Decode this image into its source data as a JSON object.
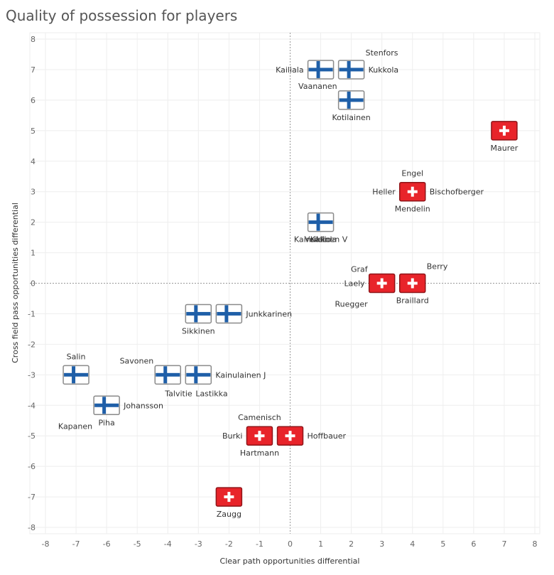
{
  "colors": {
    "finland_white": "#ffffff",
    "finland_blue": "#1f5fa8",
    "finland_border": "#8a8a8a",
    "swiss_red": "#e8242a",
    "swiss_border": "#8f1418",
    "swiss_cross": "#ffffff",
    "grid": "#eeeeee",
    "zero_line": "#999999",
    "tick_text": "#666666"
  },
  "chart_data": {
    "type": "scatter",
    "title": "Quality of possession for players",
    "xlabel": "Clear path opportunities differential",
    "ylabel": "Cross field pass opportunities differential",
    "xlim": [
      -8,
      8
    ],
    "ylim": [
      -8,
      8
    ],
    "xticks": [
      -8,
      -7,
      -6,
      -5,
      -4,
      -3,
      -2,
      -1,
      0,
      1,
      2,
      3,
      4,
      5,
      6,
      7,
      8
    ],
    "yticks": [
      8,
      7,
      6,
      5,
      4,
      3,
      2,
      1,
      0,
      -1,
      -2,
      -3,
      -4,
      -5,
      -6,
      -7,
      -8
    ],
    "grid": true,
    "markers": [
      {
        "team": "Finland",
        "x": 1,
        "y": 7
      },
      {
        "team": "Finland",
        "x": 2,
        "y": 7
      },
      {
        "team": "Finland",
        "x": 2,
        "y": 6
      },
      {
        "team": "Finland",
        "x": 1,
        "y": 2
      },
      {
        "team": "Finland",
        "x": -3,
        "y": -1
      },
      {
        "team": "Finland",
        "x": -2,
        "y": -1
      },
      {
        "team": "Finland",
        "x": -7,
        "y": -3
      },
      {
        "team": "Finland",
        "x": -4,
        "y": -3
      },
      {
        "team": "Finland",
        "x": -3,
        "y": -3
      },
      {
        "team": "Finland",
        "x": -6,
        "y": -4
      },
      {
        "team": "Switzerland",
        "x": 7,
        "y": 5
      },
      {
        "team": "Switzerland",
        "x": 4,
        "y": 3
      },
      {
        "team": "Switzerland",
        "x": 3,
        "y": 0
      },
      {
        "team": "Switzerland",
        "x": 4,
        "y": 0
      },
      {
        "team": "Switzerland",
        "x": -1,
        "y": -5
      },
      {
        "team": "Switzerland",
        "x": 0,
        "y": -5
      },
      {
        "team": "Switzerland",
        "x": -2,
        "y": -7
      }
    ],
    "labels": [
      {
        "text": "Stenfors",
        "x": 2,
        "y": 7,
        "pos": "above-right"
      },
      {
        "text": "Kailiala",
        "x": 1,
        "y": 7,
        "pos": "left"
      },
      {
        "text": "Kukkola",
        "x": 2,
        "y": 7,
        "pos": "right"
      },
      {
        "text": "Vaananen",
        "x": 2,
        "y": 6,
        "pos": "above-left"
      },
      {
        "text": "Kotilainen",
        "x": 2,
        "y": 6,
        "pos": "below"
      },
      {
        "text": "Kallio",
        "x": 1,
        "y": 2,
        "pos": "below"
      },
      {
        "text": "Veikkola",
        "x": 1,
        "y": 2,
        "pos": "below"
      },
      {
        "text": "Kainulainen V",
        "x": 1,
        "y": 2,
        "pos": "below"
      },
      {
        "text": "Junkkarinen",
        "x": -2,
        "y": -1,
        "pos": "right"
      },
      {
        "text": "Sikkinen",
        "x": -3,
        "y": -1,
        "pos": "below"
      },
      {
        "text": "Salin",
        "x": -7,
        "y": -3,
        "pos": "above"
      },
      {
        "text": "Savonen",
        "x": -4,
        "y": -3,
        "pos": "above-left"
      },
      {
        "text": "Kainulainen J",
        "x": -3,
        "y": -3,
        "pos": "right"
      },
      {
        "text": "Talvitie",
        "x": -4,
        "y": -3,
        "pos": "below-right"
      },
      {
        "text": "Lastikka",
        "x": -3,
        "y": -3,
        "pos": "below-right"
      },
      {
        "text": "Kapanen",
        "x": -6,
        "y": -4,
        "pos": "below-left"
      },
      {
        "text": "Johansson",
        "x": -6,
        "y": -4,
        "pos": "right"
      },
      {
        "text": "Piha",
        "x": -6,
        "y": -4,
        "pos": "below"
      },
      {
        "text": "Maurer",
        "x": 7,
        "y": 5,
        "pos": "below"
      },
      {
        "text": "Engel",
        "x": 4,
        "y": 3,
        "pos": "above"
      },
      {
        "text": "Heller",
        "x": 4,
        "y": 3,
        "pos": "left"
      },
      {
        "text": "Bischofberger",
        "x": 4,
        "y": 3,
        "pos": "right"
      },
      {
        "text": "Mendelin",
        "x": 4,
        "y": 3,
        "pos": "below"
      },
      {
        "text": "Graf",
        "x": 3,
        "y": 0,
        "pos": "above-left"
      },
      {
        "text": "Berry",
        "x": 4,
        "y": 0,
        "pos": "above-right"
      },
      {
        "text": "Laely",
        "x": 3,
        "y": 0,
        "pos": "left"
      },
      {
        "text": "Ruegger",
        "x": 3,
        "y": 0,
        "pos": "below-left"
      },
      {
        "text": "Braillard",
        "x": 4,
        "y": 0,
        "pos": "below"
      },
      {
        "text": "Camenisch",
        "x": -1,
        "y": -5,
        "pos": "above"
      },
      {
        "text": "Burki",
        "x": -1,
        "y": -5,
        "pos": "left"
      },
      {
        "text": "Hoffbauer",
        "x": 0,
        "y": -5,
        "pos": "right"
      },
      {
        "text": "Hartmann",
        "x": -1,
        "y": -5,
        "pos": "below"
      },
      {
        "text": "Zaugg",
        "x": -2,
        "y": -7,
        "pos": "below"
      }
    ]
  }
}
